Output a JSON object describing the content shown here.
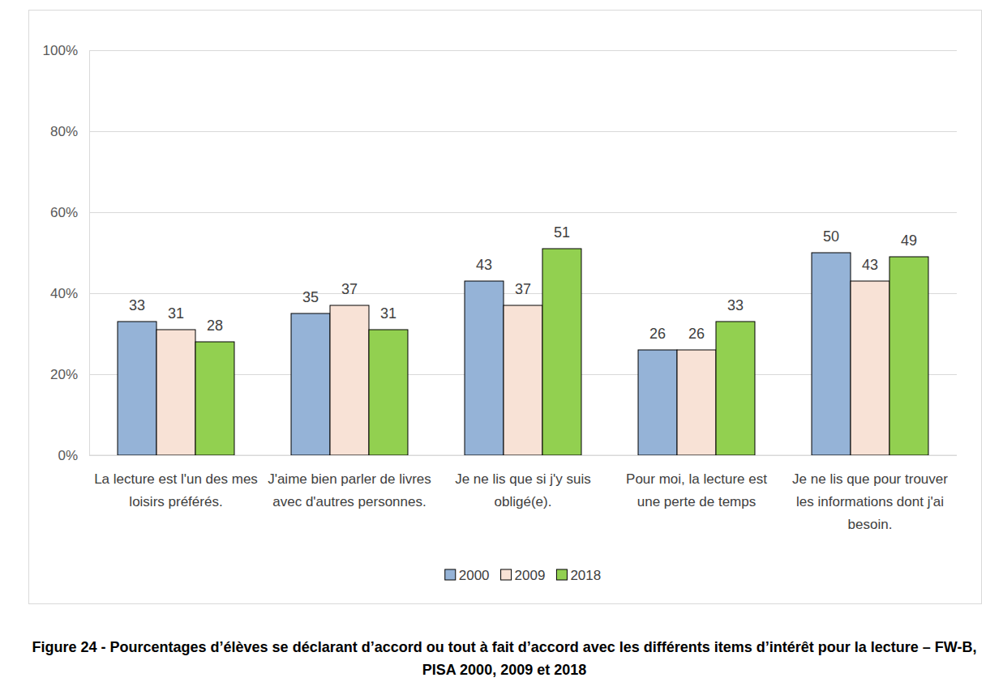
{
  "chart_data": {
    "type": "bar",
    "title": "Figure 24 - Pourcentages d’élèves se déclarant d’accord ou tout à fait d’accord avec les différents items d’intérêt pour la lecture – FW-B, PISA 2000, 2009 et 2018",
    "categories": [
      "La lecture est l'un des mes loisirs préférés.",
      "J'aime bien parler de livres avec d'autres personnes.",
      "Je ne lis que si j'y suis obligé(e).",
      "Pour moi, la lecture est une perte de temps",
      "Je ne lis que pour trouver les informations dont j'ai besoin."
    ],
    "series": [
      {
        "name": "2000",
        "color": "#95b3d7",
        "values": [
          33,
          35,
          43,
          26,
          50
        ]
      },
      {
        "name": "2009",
        "color": "#f8e2d6",
        "values": [
          31,
          37,
          37,
          26,
          43
        ]
      },
      {
        "name": "2018",
        "color": "#92d050",
        "values": [
          28,
          31,
          51,
          33,
          49
        ]
      }
    ],
    "ylim": [
      0,
      100
    ],
    "yticks": [
      {
        "value": 0,
        "label": "0%"
      },
      {
        "value": 20,
        "label": "20%"
      },
      {
        "value": 40,
        "label": "40%"
      },
      {
        "value": 60,
        "label": "60%"
      },
      {
        "value": 80,
        "label": "80%"
      },
      {
        "value": 100,
        "label": "100%"
      }
    ],
    "grid": true,
    "legend": "bottom",
    "data_labels": true
  }
}
